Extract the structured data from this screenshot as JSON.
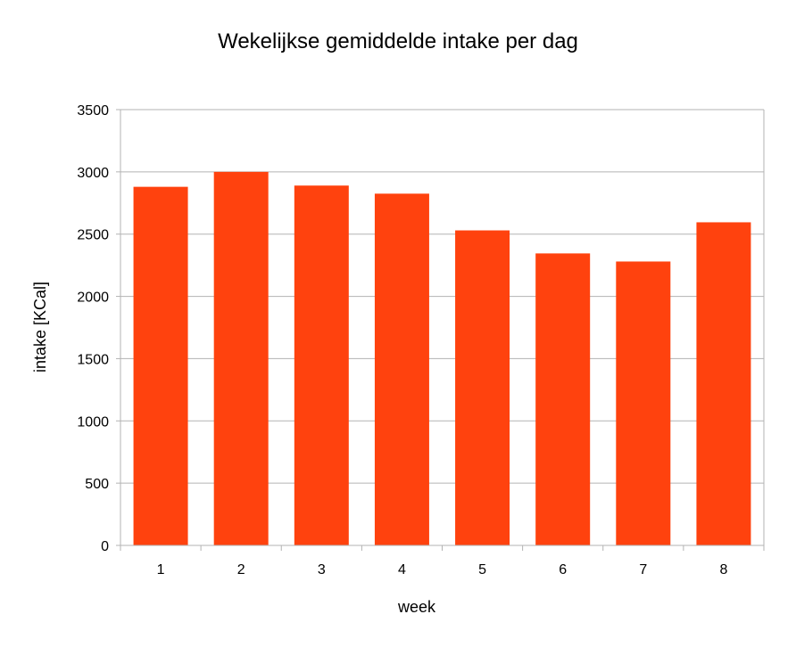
{
  "chart_data": {
    "type": "bar",
    "title": "Wekelijkse gemiddelde intake per dag",
    "xlabel": "week",
    "ylabel": "intake [KCal]",
    "categories": [
      "1",
      "2",
      "3",
      "4",
      "5",
      "6",
      "7",
      "8"
    ],
    "values": [
      2880,
      3000,
      2890,
      2825,
      2530,
      2345,
      2280,
      2595
    ],
    "ylim": [
      0,
      3500
    ],
    "yticks": [
      0,
      500,
      1000,
      1500,
      2000,
      2500,
      3000,
      3500
    ],
    "grid": true,
    "legend": "none",
    "bar_color": "#FF420E",
    "grid_color": "#B3B3B3"
  }
}
